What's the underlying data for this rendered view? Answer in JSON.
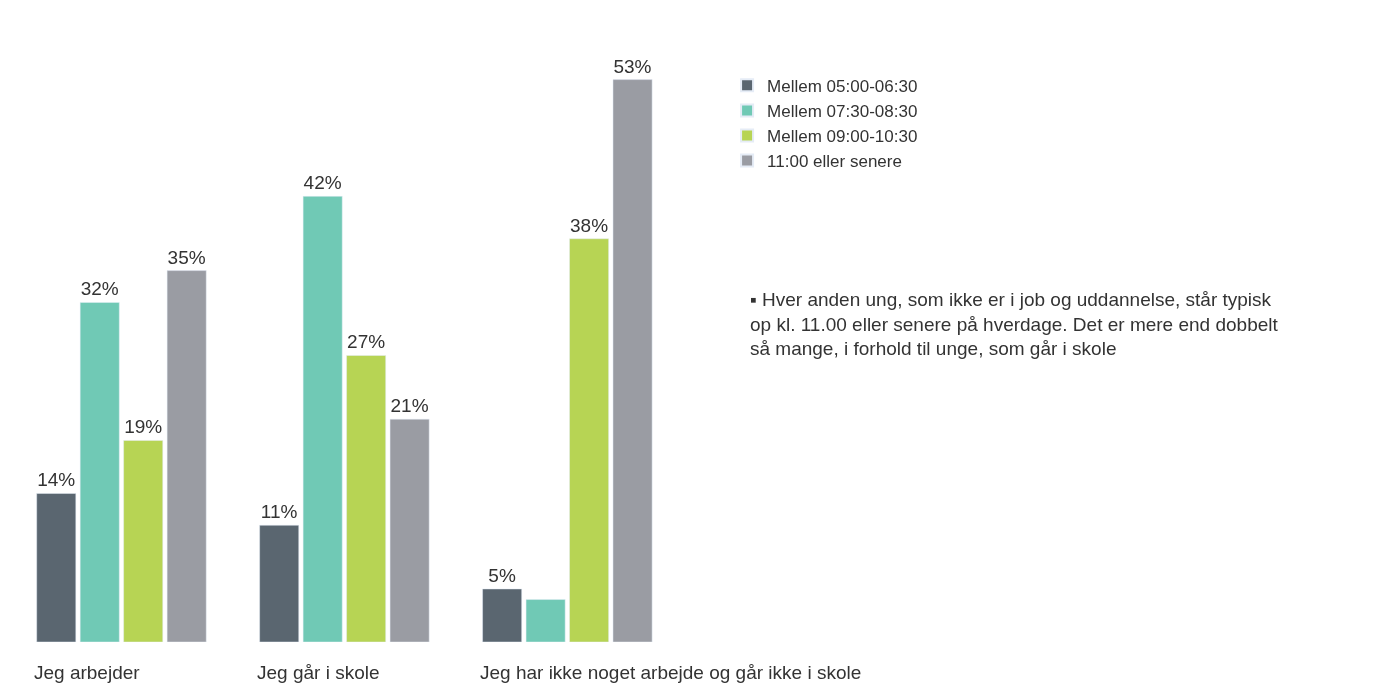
{
  "chart_data": {
    "type": "bar",
    "categories": [
      "Jeg arbejder",
      "Jeg går i skole",
      "Jeg har ikke noget arbejde og går ikke i skole"
    ],
    "series": [
      {
        "name": "Mellem 05:00-06:30",
        "color": "#5a6670",
        "values": [
          14,
          11,
          5
        ],
        "value_labels": [
          "14%",
          "11%",
          "5%"
        ]
      },
      {
        "name": "Mellem 07:30-08:30",
        "color": "#70c9b5",
        "values": [
          32,
          42,
          4
        ],
        "value_labels": [
          "32%",
          "42%",
          null
        ]
      },
      {
        "name": "Mellem 09:00-10:30",
        "color": "#b7d454",
        "values": [
          19,
          27,
          38
        ],
        "value_labels": [
          "19%",
          "27%",
          "38%"
        ]
      },
      {
        "name": "11:00 eller senere",
        "color": "#9a9ca3",
        "values": [
          35,
          21,
          53
        ],
        "value_labels": [
          "35%",
          "21%",
          "53%"
        ]
      }
    ],
    "legend": "right",
    "annotations": [
      "▪ Hver anden ung, som ikke er i job og uddannelse, står typisk op kl. 11.00 eller senere på hverdage. Det er mere end dobbelt så mange, i forhold til unge, som går i skole"
    ]
  }
}
